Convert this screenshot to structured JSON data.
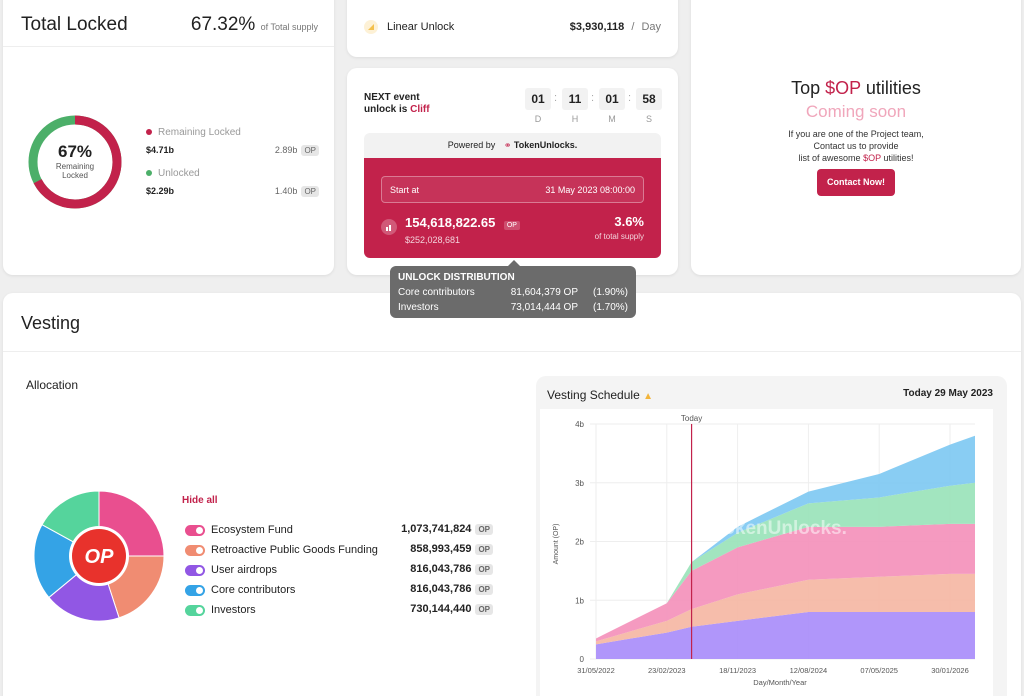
{
  "total_locked": {
    "title": "Total Locked",
    "percent": "67.32%",
    "percent_suffix": "of Total supply",
    "donut_center_value": "67%",
    "donut_center_line1": "Remaining",
    "donut_center_line2": "Locked",
    "locked_fraction": 0.6732,
    "legend": [
      {
        "label": "Remaining Locked",
        "value": "$4.71b",
        "amount": "2.89b",
        "unit": "OP",
        "color": "#c2224b"
      },
      {
        "label": "Unlocked",
        "value": "$2.29b",
        "amount": "1.40b",
        "unit": "OP",
        "color": "#4caf69"
      }
    ]
  },
  "linear_unlock": {
    "label": "Linear Unlock",
    "amount": "$3,930,118",
    "per": "/",
    "period": "Day"
  },
  "next_event": {
    "heading_line1": "NEXT event",
    "heading_line2_prefix": "unlock is",
    "event_type": "Cliff",
    "countdown": [
      {
        "value": "01",
        "label": "D"
      },
      {
        "value": "11",
        "label": "H"
      },
      {
        "value": "01",
        "label": "M"
      },
      {
        "value": "58",
        "label": "S"
      }
    ],
    "powered_by": "Powered by",
    "brand": "TokenUnlocks.",
    "start_label": "Start at",
    "start_date": "31 May 2023 08:00:00",
    "unlock_amount": "154,618,822.65",
    "unlock_unit": "OP",
    "unlock_usd": "$252,028,681",
    "unlock_pct": "3.6%",
    "unlock_pct_label": "of total supply"
  },
  "tooltip": {
    "title": "UNLOCK DISTRIBUTION",
    "rows": [
      {
        "name": "Core contributors",
        "amount": "81,604,379 OP",
        "pct": "(1.90%)"
      },
      {
        "name": "Investors",
        "amount": "73,014,444 OP",
        "pct": "(1.70%)"
      }
    ]
  },
  "top_utilities": {
    "title_prefix": "Top",
    "token": "$OP",
    "title_suffix": "utilities",
    "coming_soon": "Coming soon",
    "desc_line1": "If you are one of the Project team,",
    "desc_line2": "Contact us to provide",
    "desc_line3_prefix": "list of awesome",
    "desc_token": "$OP",
    "desc_line3_suffix": "utilities!",
    "button": "Contact Now!"
  },
  "vesting": {
    "title": "Vesting",
    "allocation_title": "Allocation",
    "logo_text": "OP",
    "hide_all": "Hide all",
    "allocations": [
      {
        "name": "Ecosystem Fund",
        "amount": "1,073,741,824",
        "unit": "OP",
        "color": "#e94f8f"
      },
      {
        "name": "Retroactive Public Goods Funding",
        "amount": "858,993,459",
        "unit": "OP",
        "color": "#f08c72"
      },
      {
        "name": "User airdrops",
        "amount": "816,043,786",
        "unit": "OP",
        "color": "#9157e4"
      },
      {
        "name": "Core contributors",
        "amount": "816,043,786",
        "unit": "OP",
        "color": "#34a3e6"
      },
      {
        "name": "Investors",
        "amount": "730,144,440",
        "unit": "OP",
        "color": "#55d49c"
      }
    ]
  },
  "chart_data": {
    "type": "area",
    "title": "Vesting Schedule",
    "today_label": "Today 29 May 2023",
    "today_marker": "Today",
    "watermark": "TokenUnlocks.",
    "xlabel": "Day/Month/Year",
    "ylabel": "Amount (OP)",
    "x_ticks": [
      "31/05/2022",
      "23/02/2023",
      "18/11/2023",
      "12/08/2024",
      "07/05/2025",
      "30/01/2026"
    ],
    "y_ticks": [
      "0",
      "1b",
      "2b",
      "3b",
      "4b"
    ],
    "ylim": [
      0,
      4
    ],
    "x": [
      "31/05/2022",
      "23/02/2023",
      "31/05/2023",
      "18/11/2023",
      "12/08/2024",
      "07/05/2025",
      "30/01/2026",
      "31/05/2026"
    ],
    "series": [
      {
        "name": "Investors",
        "color": "#a78bfa",
        "values": [
          0.25,
          0.45,
          0.55,
          0.65,
          0.8,
          0.8,
          0.8,
          0.8
        ]
      },
      {
        "name": "Core contributors",
        "color": "#f5b6a2",
        "values": [
          0.05,
          0.2,
          0.3,
          0.45,
          0.55,
          0.6,
          0.65,
          0.65
        ]
      },
      {
        "name": "Retroactive Public Goods Funding",
        "color": "#f48fb9",
        "values": [
          0.05,
          0.3,
          0.65,
          0.8,
          0.9,
          0.85,
          0.85,
          0.85
        ]
      },
      {
        "name": "User airdrops",
        "color": "#98e2b8",
        "values": [
          0.0,
          0.0,
          0.15,
          0.25,
          0.4,
          0.5,
          0.65,
          0.7
        ]
      },
      {
        "name": "Ecosystem Fund",
        "color": "#7cc8f2",
        "values": [
          0.0,
          0.0,
          0.0,
          0.1,
          0.2,
          0.4,
          0.7,
          0.8
        ]
      }
    ]
  }
}
